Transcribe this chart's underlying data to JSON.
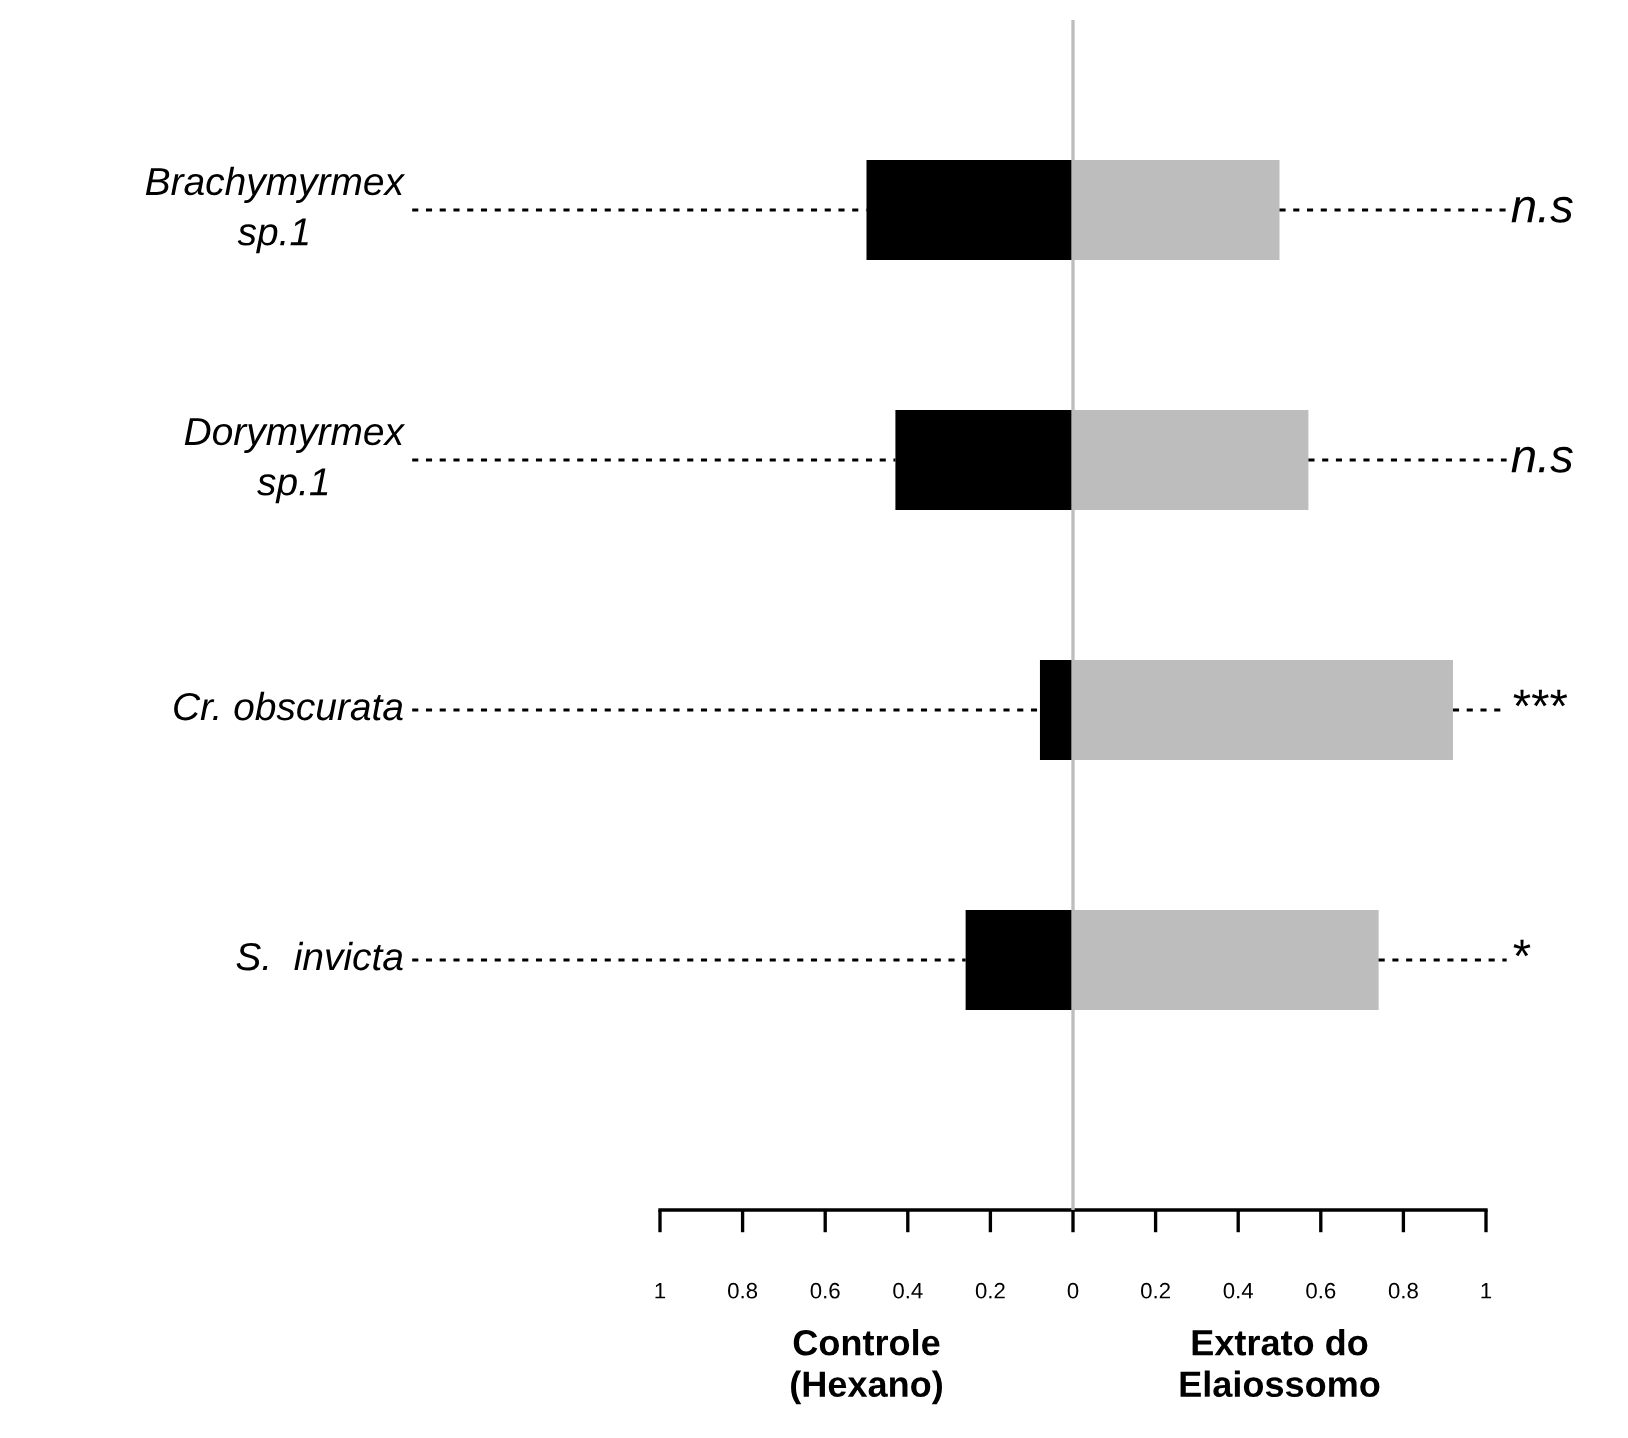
{
  "chart_data": {
    "type": "bar",
    "orientation": "horizontal",
    "stacked": true,
    "categories": [
      "Brachymyrmex\nsp.1",
      "Dorymyrmex\nsp.1",
      "Cr. obscurata",
      "S.  invicta"
    ],
    "series": [
      {
        "color": "#000000",
        "values": [
          -0.5,
          -0.43,
          -0.08,
          -0.26
        ]
      },
      {
        "color": "#bdbdbd",
        "values": [
          0.5,
          0.57,
          0.92,
          0.74
        ]
      }
    ],
    "xlim": [
      -1,
      1
    ],
    "xticks": [
      {
        "value": -1,
        "label": "1"
      },
      {
        "value": -0.8,
        "label": "0.8"
      },
      {
        "value": -0.6,
        "label": "0.6"
      },
      {
        "value": -0.4,
        "label": "0.4"
      },
      {
        "value": -0.2,
        "label": "0.2"
      },
      0,
      0.2,
      0.4,
      0.6,
      0.8,
      1
    ],
    "ref_lines": [
      {
        "axis": "x",
        "value": 0,
        "color": "#bdbdbd"
      }
    ],
    "annotations": [
      "n.s",
      "n.s",
      "***",
      "*",
      "Controle\n(Hexano)",
      "Extrato do\nElaiossomo"
    ],
    "grid": "y"
  }
}
